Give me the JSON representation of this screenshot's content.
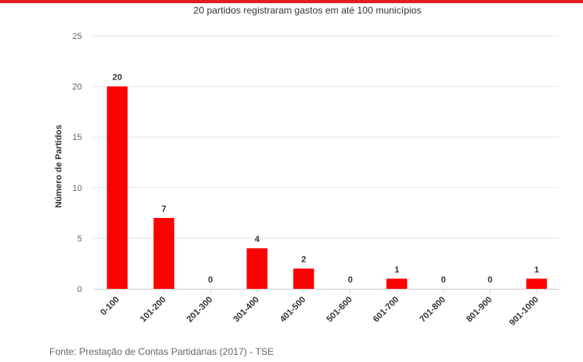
{
  "colors": {
    "accent": "#e02020",
    "bar": "#ff0000",
    "grid": "#e6e6e6",
    "axis": "#cccccc"
  },
  "source": "Fonte: Prestação de Contas Partidárias (2017) - TSE",
  "chart_data": {
    "type": "bar",
    "title": "20 partidos registraram gastos em até 100 municípios",
    "xlabel": "",
    "ylabel": "Número de Partidos",
    "categories": [
      "0-100",
      "101-200",
      "201-300",
      "301-400",
      "401-500",
      "501-600",
      "601-700",
      "701-800",
      "801-900",
      "901-1000"
    ],
    "values": [
      20,
      7,
      0,
      4,
      2,
      0,
      1,
      0,
      0,
      1
    ],
    "ylim": [
      0,
      25
    ],
    "yticks": [
      0,
      5,
      10,
      15,
      20,
      25
    ],
    "grid": true,
    "data_labels": true
  }
}
